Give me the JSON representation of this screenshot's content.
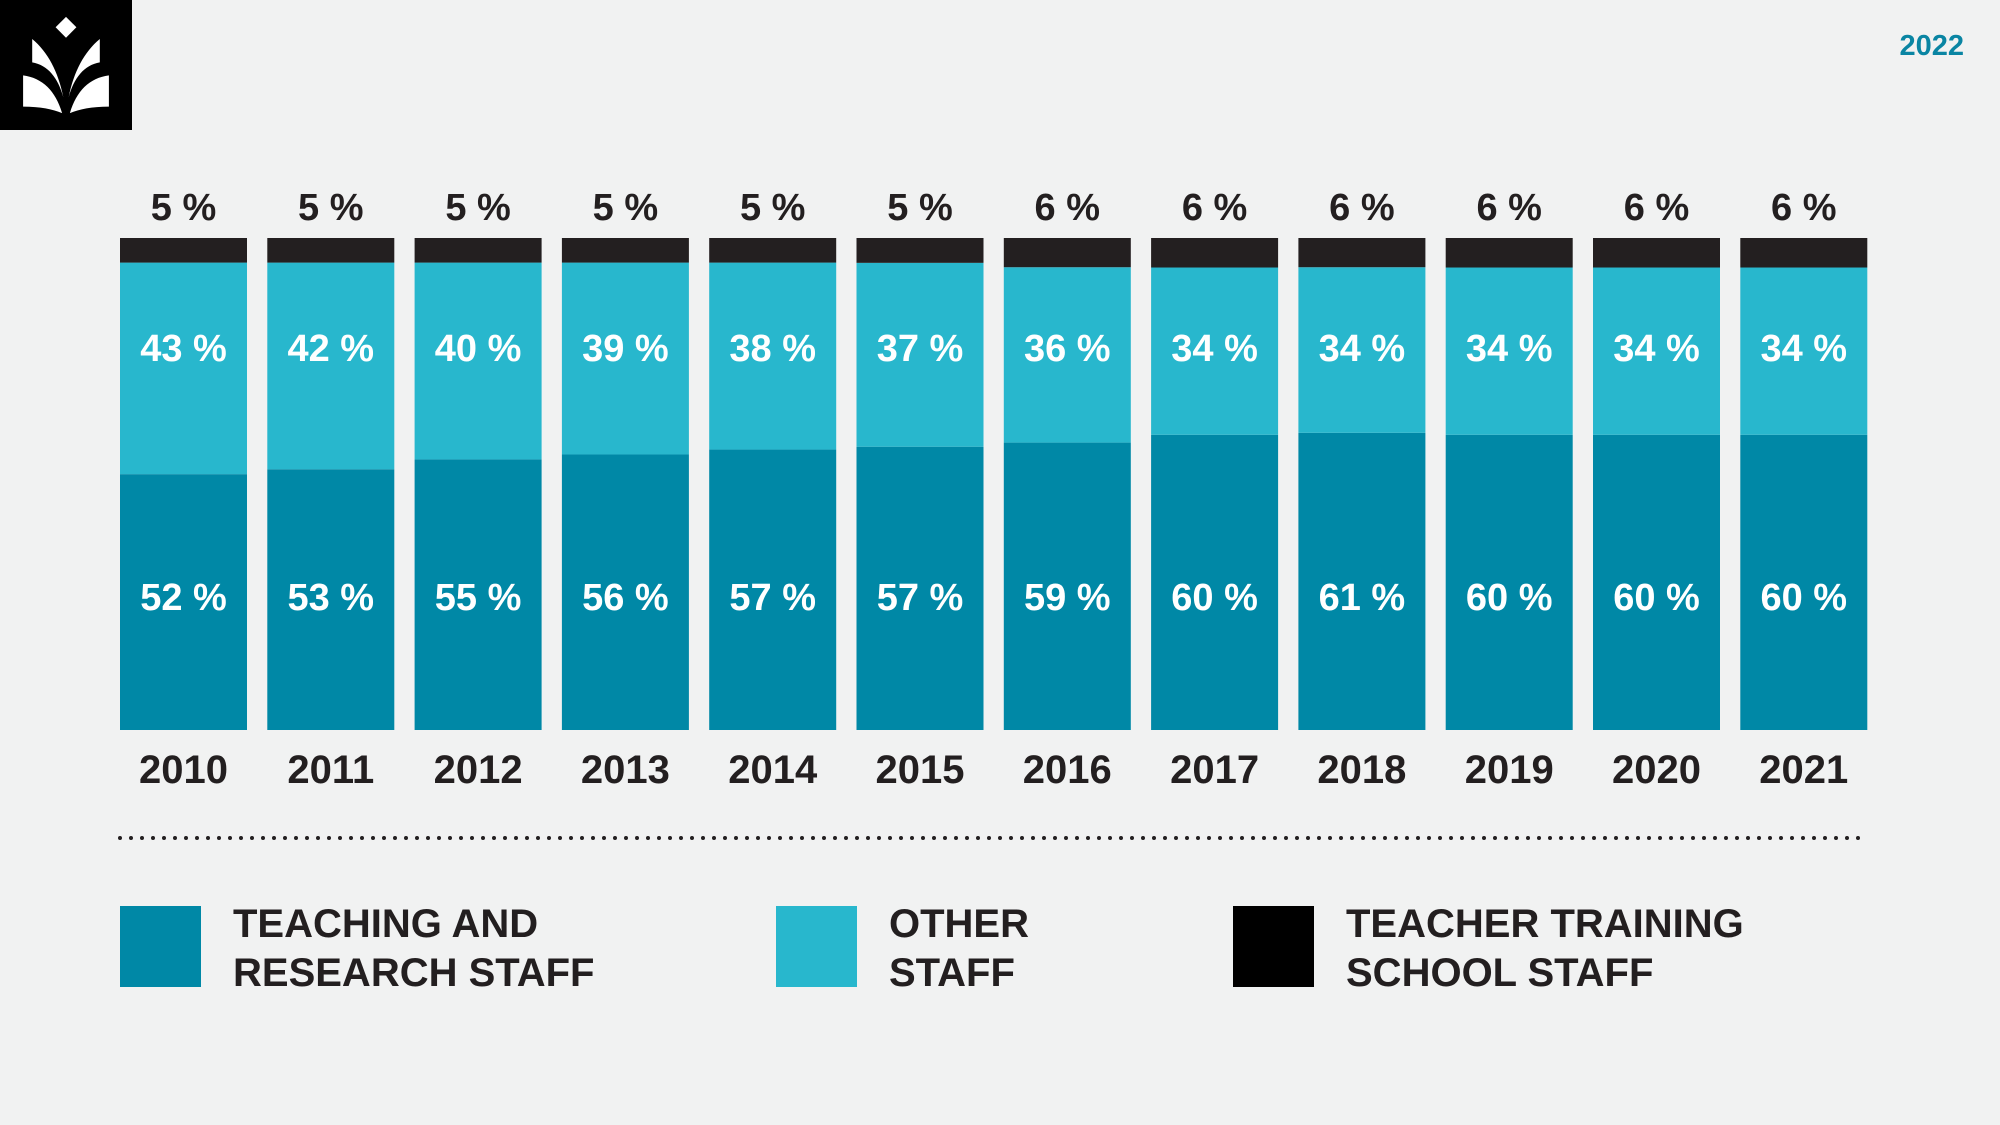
{
  "header": {
    "year": "2022"
  },
  "colors": {
    "teaching": "#0088a6",
    "other": "#28b7cd",
    "training": "#231f20",
    "background": "#f1f2f2"
  },
  "chart_data": {
    "type": "bar",
    "stacked": true,
    "normalized": true,
    "categories": [
      "2010",
      "2011",
      "2012",
      "2013",
      "2014",
      "2015",
      "2016",
      "2017",
      "2018",
      "2019",
      "2020",
      "2021"
    ],
    "series": [
      {
        "name": "TEACHING AND RESEARCH STAFF",
        "color": "#0088a6",
        "values": [
          52,
          53,
          55,
          56,
          57,
          57,
          59,
          60,
          61,
          60,
          60,
          60
        ]
      },
      {
        "name": "OTHER STAFF",
        "color": "#28b7cd",
        "values": [
          43,
          42,
          40,
          39,
          38,
          37,
          36,
          34,
          34,
          34,
          34,
          34
        ]
      },
      {
        "name": "TEACHER TRAINING SCHOOL STAFF",
        "color": "#231f20",
        "values": [
          5,
          5,
          5,
          5,
          5,
          5,
          6,
          6,
          6,
          6,
          6,
          6
        ]
      }
    ],
    "value_suffix": " %",
    "legend_placement": "bottom",
    "grid": false
  },
  "legend": [
    {
      "line1": "TEACHING AND",
      "line2": "RESEARCH STAFF"
    },
    {
      "line1": "OTHER",
      "line2": "STAFF"
    },
    {
      "line1": "TEACHER TRAINING",
      "line2": "SCHOOL STAFF"
    }
  ]
}
